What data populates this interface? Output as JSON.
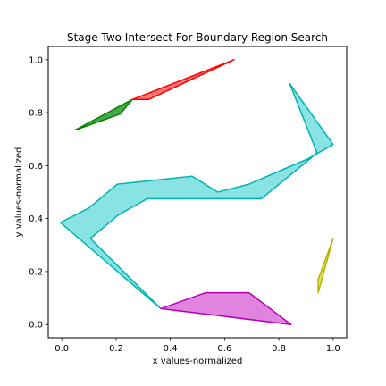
{
  "chart_data": {
    "type": "polygon",
    "title": "Stage Two Intersect For Boundary Region Search",
    "xlabel": "x values-normalized",
    "ylabel": "y values-normalized",
    "xlim": [
      -0.05,
      1.05
    ],
    "ylim": [
      -0.05,
      1.05
    ],
    "xticks": [
      0.0,
      0.2,
      0.4,
      0.6,
      0.8,
      1.0
    ],
    "yticks": [
      0.0,
      0.2,
      0.4,
      0.6,
      0.8,
      1.0
    ],
    "xtick_labels": [
      "0.0",
      "0.2",
      "0.4",
      "0.6",
      "0.8",
      "1.0"
    ],
    "ytick_labels": [
      "0.0",
      "0.2",
      "0.4",
      "0.6",
      "0.8",
      "1.0"
    ],
    "grid": false,
    "series": [
      {
        "edge": "#008000",
        "fill": "#33a033",
        "points": [
          [
            0.05,
            0.735
          ],
          [
            0.26,
            0.85
          ],
          [
            0.215,
            0.795
          ]
        ]
      },
      {
        "edge": "#ff0000",
        "fill": "#ff6666",
        "points": [
          [
            0.26,
            0.85
          ],
          [
            0.635,
            1.0
          ],
          [
            0.32,
            0.85
          ]
        ]
      },
      {
        "edge": "#00b3b3",
        "fill": "#7de0e0",
        "points": [
          [
            0.84,
            0.91
          ],
          [
            0.94,
            0.65
          ],
          [
            0.92,
            0.63
          ],
          [
            0.735,
            0.475
          ],
          [
            0.315,
            0.475
          ],
          [
            0.21,
            0.415
          ],
          [
            0.105,
            0.325
          ],
          [
            0.365,
            0.06
          ],
          [
            -0.005,
            0.385
          ],
          [
            0.1,
            0.44
          ],
          [
            0.205,
            0.53
          ],
          [
            0.48,
            0.56
          ],
          [
            0.575,
            0.5
          ],
          [
            0.69,
            0.53
          ],
          [
            0.905,
            0.625
          ],
          [
            0.94,
            0.645
          ],
          [
            1.0,
            0.68
          ]
        ]
      },
      {
        "edge": "#b300b3",
        "fill": "#dd77dd",
        "points": [
          [
            0.365,
            0.06
          ],
          [
            0.53,
            0.12
          ],
          [
            0.69,
            0.12
          ],
          [
            0.845,
            0.0
          ]
        ]
      },
      {
        "edge": "#b3b300",
        "fill": "#dddd55",
        "points": [
          [
            1.0,
            0.325
          ],
          [
            0.945,
            0.12
          ],
          [
            0.945,
            0.17
          ]
        ]
      }
    ]
  }
}
